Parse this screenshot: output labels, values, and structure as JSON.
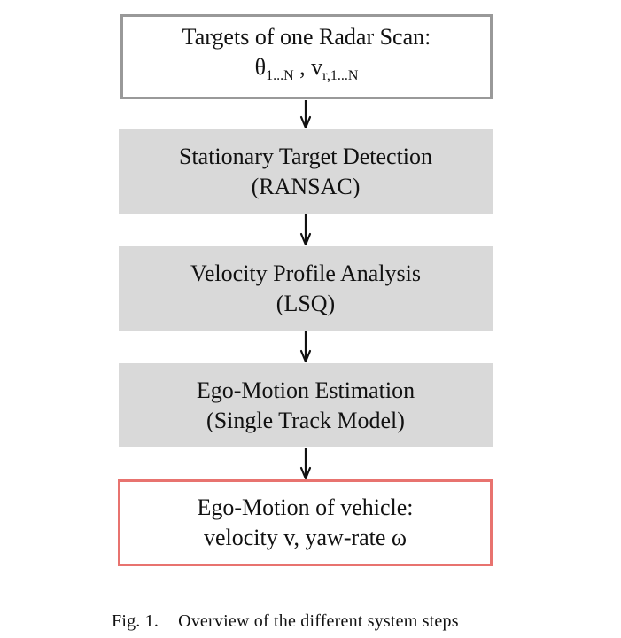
{
  "boxes": {
    "input": {
      "line1": "Targets of one Radar Scan:",
      "theta": "θ",
      "theta_sub": "1...N",
      "separator": ",",
      "v": "v",
      "v_sub": "r,1...N"
    },
    "step1": {
      "line1": "Stationary Target Detection",
      "line2": "(RANSAC)"
    },
    "step2": {
      "line1": "Velocity Profile Analysis",
      "line2": "(LSQ)"
    },
    "step3": {
      "line1": "Ego-Motion Estimation",
      "line2": "(Single Track Model)"
    },
    "output": {
      "line1": "Ego-Motion of vehicle:",
      "line2": "velocity v, yaw-rate ω"
    }
  },
  "caption": {
    "label": "Fig. 1.",
    "text": "Overview of the different system steps"
  },
  "colors": {
    "input_border": "#999999",
    "step_fill": "#d9d9d9",
    "output_border": "#e8736f",
    "arrow": "#111111"
  }
}
